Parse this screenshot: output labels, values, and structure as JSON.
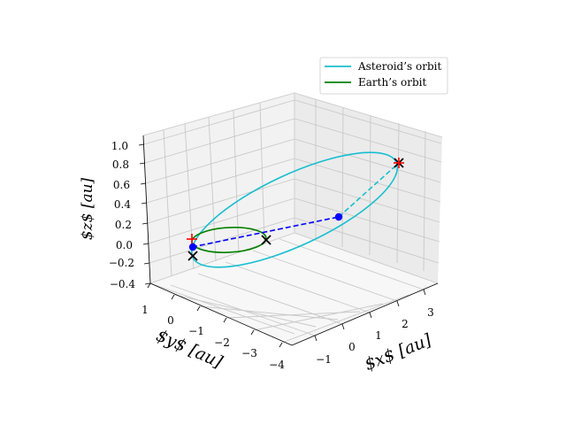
{
  "chart_data": {
    "type": "line",
    "projection": "3d",
    "xlabel": "$x$ [au]",
    "ylabel": "$y$ [au]",
    "zlabel": "$z$ [au]",
    "x_ticks": [
      "−1",
      "0",
      "1",
      "2",
      "3"
    ],
    "y_ticks": [
      "1",
      "0",
      "−1",
      "−2",
      "−3",
      "−4"
    ],
    "z_ticks": [
      "1.0",
      "0.8",
      "0.6",
      "0.4",
      "0.2",
      "0.0",
      "−0.2",
      "−0.4"
    ],
    "xlim": [
      -1.5,
      3.5
    ],
    "ylim": [
      -4.0,
      1.2
    ],
    "zlim": [
      -0.4,
      1.05
    ],
    "grid": true,
    "legend_position": "top-right",
    "series": [
      {
        "name": "Asteroid’s orbit",
        "color": "#17becf",
        "kind": "ellipse",
        "semi_major_axis": 2.0,
        "eccentricity": 0.55,
        "inclination_deg": 15,
        "arg_perihelion_deg": 200
      },
      {
        "name": "Earth’s orbit",
        "color": "#008000",
        "kind": "ellipse",
        "semi_major_axis": 1.0,
        "eccentricity": 0.0,
        "inclination_deg": 0,
        "arg_perihelion_deg": 0
      }
    ],
    "lines": [
      {
        "name": "",
        "color": "#0000ff",
        "style": "dashed"
      },
      {
        "name": "",
        "color": "#17becf",
        "style": "dashed"
      }
    ],
    "markers": [
      {
        "symbol": "x",
        "color": "#000000"
      },
      {
        "symbol": "x",
        "color": "#000000"
      },
      {
        "symbol": "x",
        "color": "#000000"
      },
      {
        "symbol": "+",
        "color": "#ff0000"
      },
      {
        "symbol": "+",
        "color": "#ff0000"
      },
      {
        "symbol": "dot",
        "color": "#0000ff"
      },
      {
        "symbol": "dot",
        "color": "#0000ff"
      }
    ]
  }
}
